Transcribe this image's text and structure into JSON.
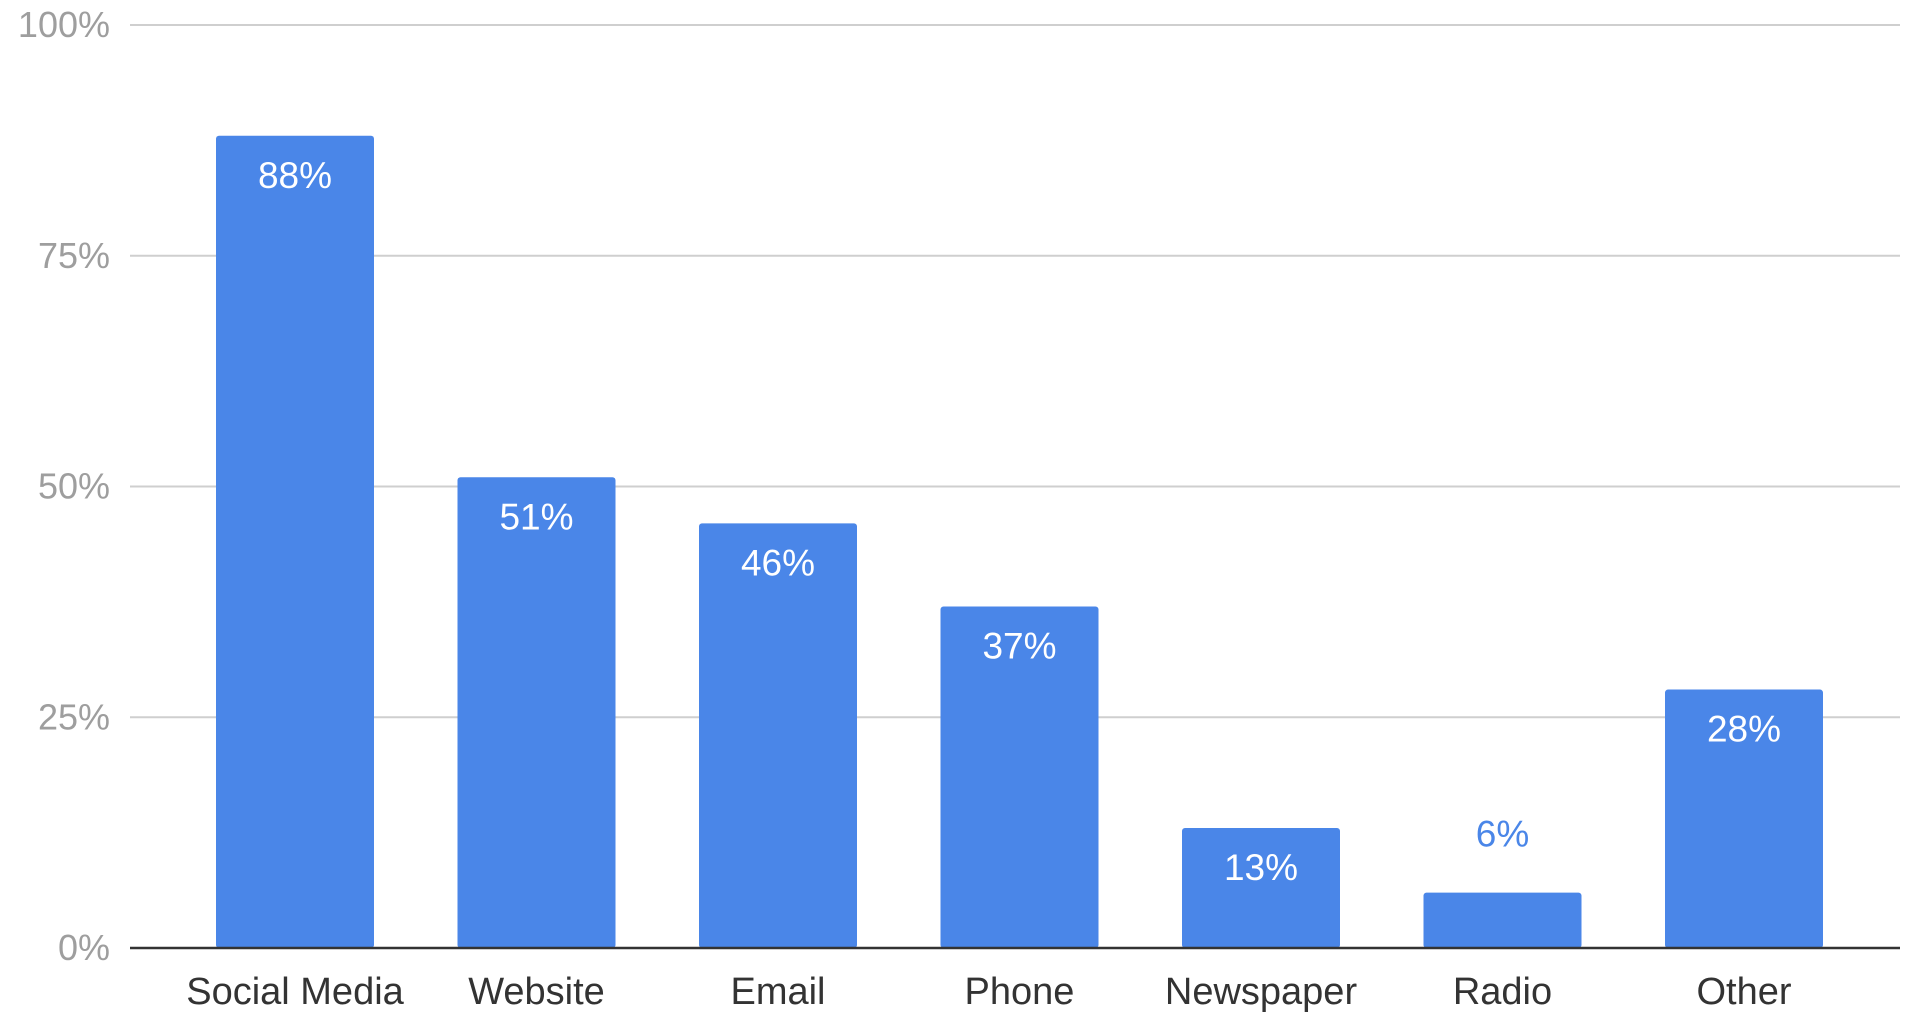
{
  "chart_data": {
    "type": "bar",
    "categories": [
      "Social Media",
      "Website",
      "Email",
      "Phone",
      "Newspaper",
      "Radio",
      "Other"
    ],
    "values": [
      88,
      51,
      46,
      37,
      13,
      6,
      28
    ],
    "data_labels": [
      "88%",
      "51%",
      "46%",
      "37%",
      "13%",
      "6%",
      "28%"
    ],
    "ylim": [
      0,
      100
    ],
    "yticks": [
      0,
      25,
      50,
      75,
      100
    ],
    "ytick_labels": [
      "0%",
      "25%",
      "50%",
      "75%",
      "100%"
    ],
    "grid": true,
    "legend": "none",
    "colors": {
      "bar": "#4a86e8",
      "label_inside": "#ffffff",
      "label_outside": "#4a86e8",
      "grid": "#cfcfcf",
      "axis": "#333333",
      "ytick": "#9e9e9e",
      "xtick": "#333333"
    }
  }
}
